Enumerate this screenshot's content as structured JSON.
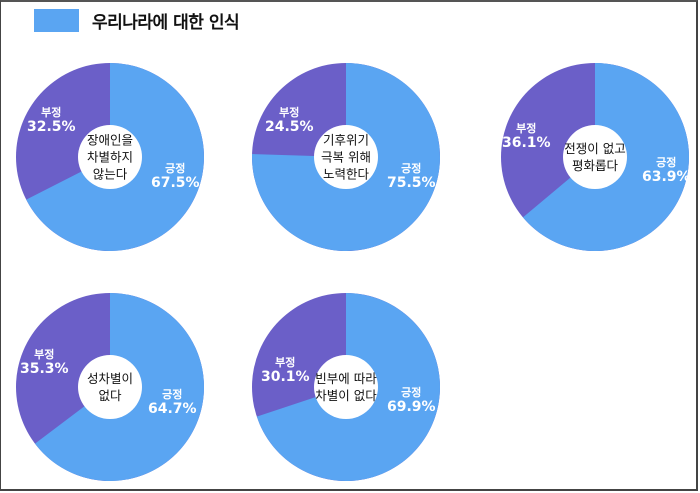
{
  "legend": {
    "label": "우리나라에 대한 인식",
    "color": "#5aa5f2"
  },
  "colors": {
    "positive": "#5aa5f2",
    "negative": "#6b5fc8",
    "hole": "#ffffff"
  },
  "charts": [
    {
      "center": "장애인을\n차별하지\n않는다",
      "pos_label": "긍정",
      "pos_pct": "67.5%",
      "neg_label": "부정",
      "neg_pct": "32.5%"
    },
    {
      "center": "기후위기\n극복 위해\n노력한다",
      "pos_label": "긍정",
      "pos_pct": "75.5%",
      "neg_label": "부정",
      "neg_pct": "24.5%"
    },
    {
      "center": "전쟁이 없고\n평화롭다",
      "pos_label": "긍정",
      "pos_pct": "63.9%",
      "neg_label": "부정",
      "neg_pct": "36.1%"
    },
    {
      "center": "성차별이\n없다",
      "pos_label": "긍정",
      "pos_pct": "64.7%",
      "neg_label": "부정",
      "neg_pct": "35.3%"
    },
    {
      "center": "빈부에 따라\n차별이 없다",
      "pos_label": "긍정",
      "pos_pct": "69.9%",
      "neg_label": "부정",
      "neg_pct": "30.1%"
    }
  ],
  "chart_data": [
    {
      "type": "pie",
      "title": "장애인을 차별하지 않는다",
      "categories": [
        "긍정",
        "부정"
      ],
      "values": [
        67.5,
        32.5
      ],
      "legend": [
        "우리나라에 대한 인식"
      ]
    },
    {
      "type": "pie",
      "title": "기후위기 극복 위해 노력한다",
      "categories": [
        "긍정",
        "부정"
      ],
      "values": [
        75.5,
        24.5
      ]
    },
    {
      "type": "pie",
      "title": "전쟁이 없고 평화롭다",
      "categories": [
        "긍정",
        "부정"
      ],
      "values": [
        63.9,
        36.1
      ]
    },
    {
      "type": "pie",
      "title": "성차별이 없다",
      "categories": [
        "긍정",
        "부정"
      ],
      "values": [
        64.7,
        35.3
      ]
    },
    {
      "type": "pie",
      "title": "빈부에 따라 차별이 없다",
      "categories": [
        "긍정",
        "부정"
      ],
      "values": [
        69.9,
        30.1
      ]
    }
  ]
}
